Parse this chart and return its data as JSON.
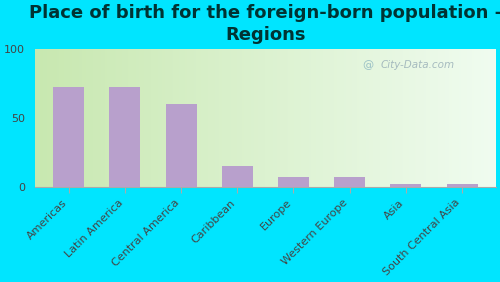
{
  "title": "Place of birth for the foreign-born population -\nRegions",
  "categories": [
    "Americas",
    "Latin America",
    "Central America",
    "Caribbean",
    "Europe",
    "Western Europe",
    "Asia",
    "South Central Asia"
  ],
  "values": [
    72,
    72,
    60,
    15,
    7,
    7,
    2,
    2
  ],
  "bar_color": "#b8a0cc",
  "background_outer": "#00e5ff",
  "ylim": [
    0,
    100
  ],
  "yticks": [
    0,
    50,
    100
  ],
  "title_fontsize": 13,
  "title_color": "#003333",
  "tick_fontsize": 8,
  "watermark": "City-Data.com",
  "grad_left": "#c8e8b0",
  "grad_right": "#e8f8f0"
}
